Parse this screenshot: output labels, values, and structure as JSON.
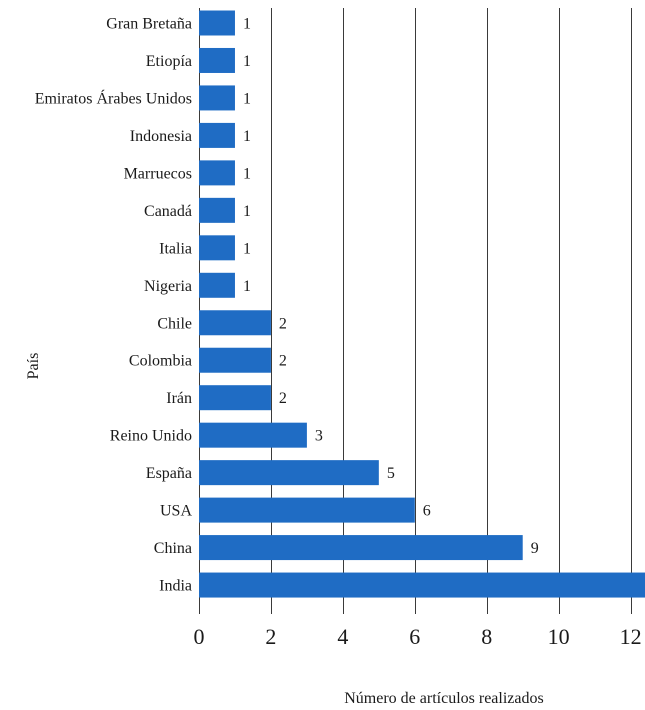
{
  "chart_data": {
    "type": "bar",
    "orientation": "horizontal",
    "title": "",
    "xlabel": "Número de artículos realizados",
    "ylabel": "País",
    "categories": [
      "Gran Bretaña",
      "Etiopía",
      "Emiratos Árabes Unidos",
      "Indonesia",
      "Marruecos",
      "Canadá",
      "Italia",
      "Nigeria",
      "Chile",
      "Colombia",
      "Irán",
      "Reino Unido",
      "España",
      "USA",
      "China",
      "India"
    ],
    "values": [
      1,
      1,
      1,
      1,
      1,
      1,
      1,
      1,
      2,
      2,
      2,
      3,
      5,
      6,
      9,
      13
    ],
    "value_labels": [
      "1",
      "1",
      "1",
      "1",
      "1",
      "1",
      "1",
      "1",
      "2",
      "2",
      "2",
      "3",
      "5",
      "6",
      "9",
      ""
    ],
    "xlim": [
      0,
      12.4
    ],
    "xticks": [
      "0",
      "2",
      "4",
      "6",
      "8",
      "10",
      "12"
    ],
    "grid": true,
    "legend": "none",
    "colors": {
      "bar": "#1f6cc4",
      "grid": "#3a3a3a",
      "text": "#1a1a1a"
    }
  }
}
